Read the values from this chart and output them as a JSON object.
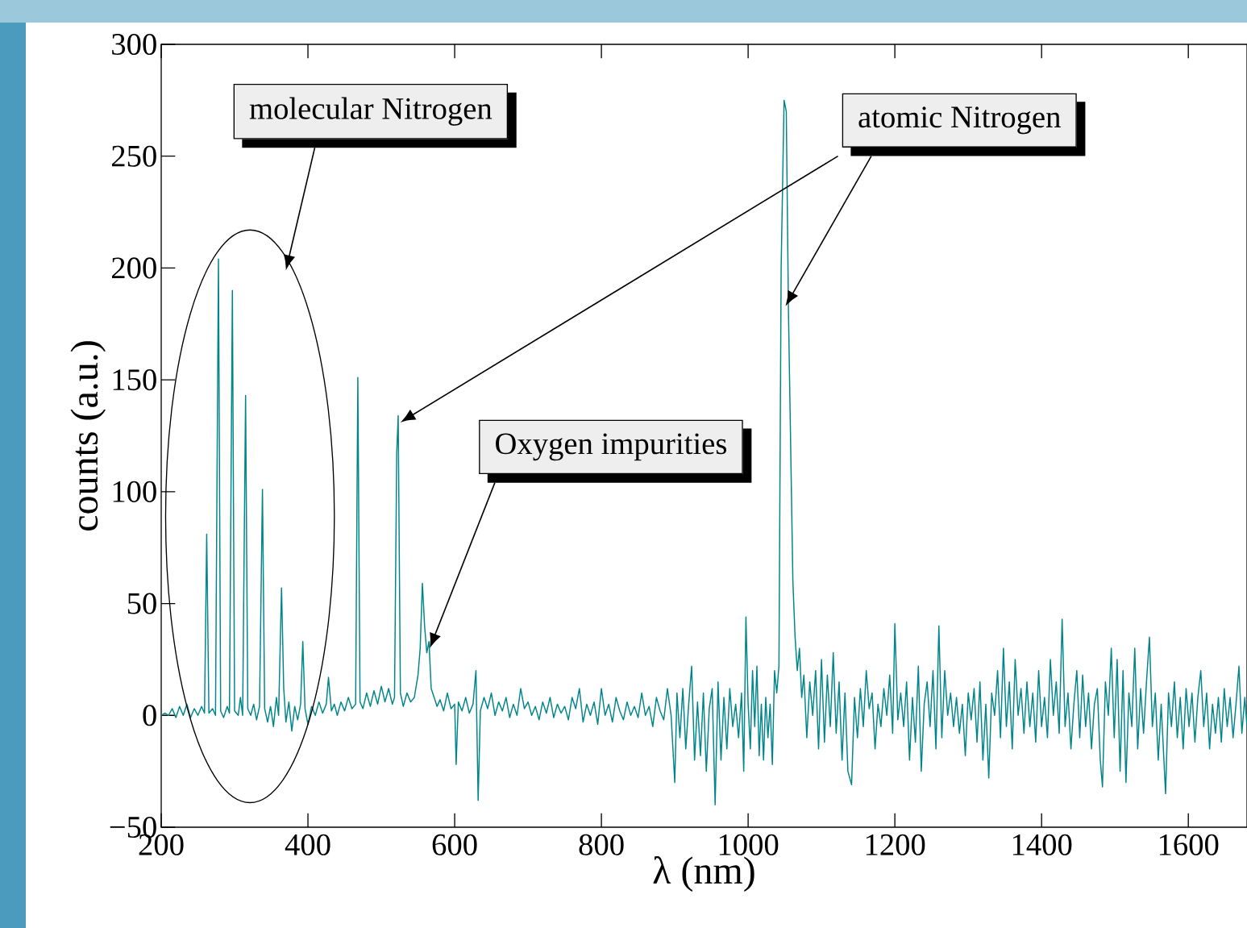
{
  "chart_data": {
    "type": "line",
    "xlabel": "λ (nm)",
    "ylabel": "counts (a.u.)",
    "color": "#00868a",
    "xlim": [
      200,
      1680
    ],
    "ylim": [
      -50,
      300
    ],
    "xticks": [
      200,
      400,
      600,
      800,
      1000,
      1200,
      1400,
      1600
    ],
    "yticks": [
      {
        "value": -50,
        "label": "−50"
      },
      0,
      50,
      100,
      150,
      200,
      250,
      300
    ],
    "annotations": [
      "molecular Nitrogen",
      "atomic Nitrogen",
      "Oxygen impurities"
    ],
    "x": [
      200,
      205,
      210,
      215,
      220,
      225,
      230,
      235,
      240,
      245,
      250,
      255,
      259,
      262,
      265,
      270,
      274,
      278,
      281,
      285,
      290,
      293,
      297,
      300,
      305,
      308,
      311,
      315,
      318,
      322,
      326,
      330,
      334,
      338,
      341,
      345,
      349,
      353,
      357,
      360,
      364,
      367,
      370,
      374,
      378,
      382,
      386,
      390,
      393,
      396,
      400,
      405,
      410,
      415,
      420,
      425,
      428,
      432,
      436,
      440,
      445,
      450,
      455,
      460,
      465,
      468,
      471,
      475,
      480,
      485,
      490,
      495,
      500,
      505,
      510,
      515,
      518,
      521,
      523,
      526,
      530,
      535,
      540,
      545,
      550,
      553,
      556,
      559,
      562,
      565,
      568,
      572,
      576,
      580,
      585,
      590,
      595,
      600,
      602,
      605,
      610,
      615,
      620,
      625,
      629,
      632,
      635,
      640,
      645,
      650,
      655,
      660,
      665,
      670,
      675,
      680,
      685,
      690,
      695,
      700,
      705,
      710,
      715,
      720,
      725,
      730,
      735,
      740,
      745,
      750,
      755,
      760,
      765,
      770,
      775,
      780,
      785,
      790,
      795,
      800,
      805,
      810,
      815,
      820,
      825,
      830,
      835,
      840,
      845,
      850,
      855,
      860,
      865,
      870,
      875,
      880,
      885,
      890,
      895,
      900,
      903,
      907,
      911,
      915,
      919,
      923,
      927,
      931,
      935,
      939,
      943,
      947,
      951,
      955,
      959,
      963,
      967,
      971,
      975,
      979,
      983,
      987,
      991,
      994,
      997,
      1000,
      1003,
      1006,
      1009,
      1012,
      1015,
      1018,
      1021,
      1024,
      1027,
      1030,
      1033,
      1036,
      1039,
      1042,
      1045,
      1049,
      1052,
      1055,
      1058,
      1061,
      1064,
      1067,
      1070,
      1073,
      1076,
      1080,
      1084,
      1088,
      1092,
      1096,
      1100,
      1104,
      1108,
      1112,
      1116,
      1120,
      1124,
      1128,
      1132,
      1136,
      1141,
      1145,
      1149,
      1153,
      1157,
      1161,
      1165,
      1169,
      1173,
      1177,
      1181,
      1185,
      1189,
      1193,
      1197,
      1200,
      1204,
      1208,
      1212,
      1216,
      1220,
      1224,
      1228,
      1232,
      1236,
      1240,
      1244,
      1248,
      1252,
      1256,
      1260,
      1264,
      1268,
      1272,
      1276,
      1280,
      1284,
      1288,
      1292,
      1296,
      1300,
      1304,
      1308,
      1312,
      1316,
      1320,
      1324,
      1328,
      1332,
      1336,
      1340,
      1344,
      1348,
      1352,
      1356,
      1360,
      1364,
      1368,
      1372,
      1376,
      1380,
      1384,
      1388,
      1392,
      1396,
      1400,
      1404,
      1408,
      1412,
      1416,
      1420,
      1424,
      1428,
      1432,
      1436,
      1440,
      1444,
      1448,
      1452,
      1456,
      1460,
      1464,
      1468,
      1472,
      1476,
      1480,
      1483,
      1487,
      1491,
      1495,
      1499,
      1503,
      1507,
      1511,
      1515,
      1519,
      1523,
      1527,
      1531,
      1535,
      1539,
      1543,
      1547,
      1551,
      1555,
      1559,
      1563,
      1569,
      1573,
      1577,
      1581,
      1585,
      1589,
      1593,
      1597,
      1601,
      1605,
      1609,
      1613,
      1617,
      1621,
      1625,
      1629,
      1633,
      1637,
      1641,
      1645,
      1649,
      1653,
      1657,
      1661,
      1665,
      1669,
      1673,
      1677,
      1680
    ],
    "values": [
      0,
      1,
      0,
      3,
      -1,
      4,
      0,
      5,
      -1,
      3,
      0,
      4,
      1,
      81,
      1,
      3,
      0,
      204,
      2,
      -1,
      4,
      1,
      190,
      2,
      0,
      8,
      0,
      143,
      3,
      0,
      5,
      -2,
      4,
      101,
      3,
      -3,
      4,
      -5,
      8,
      0,
      57,
      12,
      -3,
      6,
      -7,
      4,
      -2,
      5,
      33,
      3,
      -4,
      4,
      0,
      6,
      1,
      5,
      17,
      2,
      5,
      0,
      6,
      2,
      8,
      3,
      5,
      151,
      6,
      3,
      10,
      4,
      11,
      5,
      13,
      6,
      12,
      5,
      8,
      117,
      134,
      10,
      4,
      10,
      6,
      8,
      18,
      30,
      59,
      40,
      28,
      33,
      12,
      8,
      4,
      7,
      2,
      10,
      3,
      5,
      -22,
      6,
      2,
      8,
      1,
      5,
      20,
      -38,
      2,
      8,
      3,
      10,
      0,
      6,
      2,
      8,
      -1,
      5,
      0,
      12,
      3,
      6,
      0,
      4,
      -2,
      6,
      1,
      8,
      -1,
      5,
      1,
      4,
      -2,
      8,
      3,
      12,
      -3,
      5,
      0,
      6,
      -4,
      12,
      0,
      5,
      -3,
      8,
      2,
      -2,
      6,
      0,
      4,
      -1,
      10,
      0,
      4,
      -5,
      8,
      2,
      -2,
      12,
      0,
      -30,
      10,
      -10,
      12,
      -15,
      5,
      22,
      -20,
      6,
      -18,
      10,
      -25,
      3,
      12,
      -40,
      15,
      -20,
      8,
      -15,
      12,
      -5,
      5,
      -10,
      10,
      -25,
      44,
      5,
      -15,
      20,
      -5,
      22,
      -18,
      5,
      -20,
      8,
      -10,
      5,
      -22,
      20,
      10,
      22,
      200,
      275,
      270,
      180,
      120,
      60,
      35,
      20,
      30,
      8,
      18,
      -10,
      15,
      0,
      20,
      -15,
      25,
      -12,
      18,
      -5,
      28,
      -8,
      15,
      -20,
      10,
      -25,
      -31,
      8,
      -10,
      12,
      -5,
      20,
      3,
      10,
      -15,
      5,
      -5,
      12,
      0,
      18,
      -8,
      41,
      -2,
      10,
      -5,
      15,
      -20,
      8,
      -12,
      22,
      -25,
      5,
      15,
      -5,
      20,
      -15,
      40,
      -10,
      20,
      0,
      10,
      -5,
      8,
      -8,
      5,
      -18,
      10,
      -2,
      12,
      -12,
      15,
      -20,
      5,
      -28,
      10,
      0,
      20,
      -10,
      30,
      -5,
      15,
      -15,
      25,
      0,
      12,
      -8,
      15,
      -5,
      10,
      -12,
      20,
      -5,
      8,
      -10,
      25,
      0,
      15,
      -8,
      43,
      -5,
      10,
      -15,
      5,
      20,
      -10,
      18,
      -5,
      10,
      -15,
      5,
      12,
      -20,
      -32,
      15,
      0,
      30,
      -10,
      25,
      -25,
      20,
      -30,
      10,
      -5,
      30,
      -15,
      12,
      -8,
      15,
      35,
      -5,
      10,
      -20,
      5,
      -35,
      10,
      -5,
      15,
      -10,
      8,
      -15,
      12,
      -5,
      10,
      -12,
      8,
      20,
      -5,
      10,
      -15,
      5,
      -8,
      8,
      -12,
      12,
      -5,
      8,
      -10,
      5,
      22,
      -8,
      8,
      -5
    ]
  }
}
